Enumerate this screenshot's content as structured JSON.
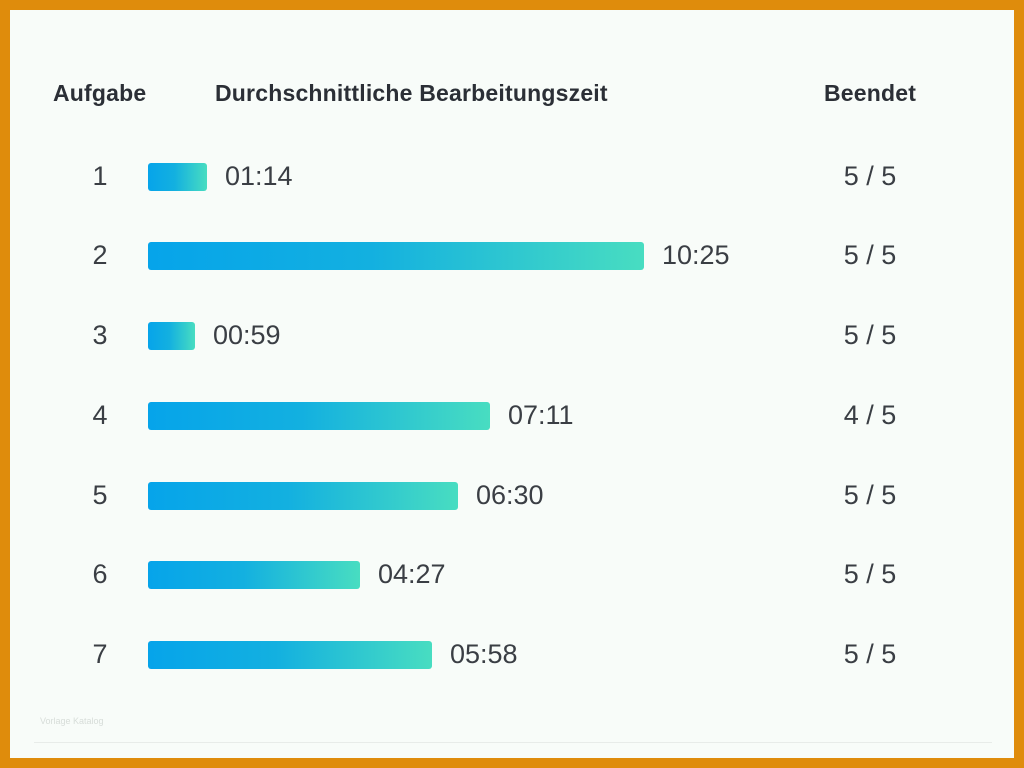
{
  "headers": {
    "task": "Aufgabe",
    "time": "Durchschnittliche Bearbeitungszeit",
    "done": "Beendet"
  },
  "watermark": "Vorlage Katalog",
  "colors": {
    "background": "#f8fcf9",
    "frame": "#df8c0c",
    "bar_start": "#06a4ea",
    "bar_end": "#48ddc1",
    "text": "#3a3e44"
  },
  "chart_data": {
    "type": "bar",
    "orientation": "horizontal",
    "categories": [
      "1",
      "2",
      "3",
      "4",
      "5",
      "6",
      "7"
    ],
    "values_seconds": [
      74,
      625,
      59,
      431,
      390,
      267,
      358
    ],
    "value_labels": [
      "01:14",
      "10:25",
      "00:59",
      "07:11",
      "06:30",
      "04:27",
      "05:58"
    ],
    "completed": [
      "5 / 5",
      "5 / 5",
      "5 / 5",
      "4 / 5",
      "5 / 5",
      "5 / 5",
      "5 / 5"
    ],
    "title": "",
    "xlabel": "Durchschnittliche Bearbeitungszeit",
    "ylabel": "Aufgabe",
    "grid": false,
    "legend": "none"
  }
}
